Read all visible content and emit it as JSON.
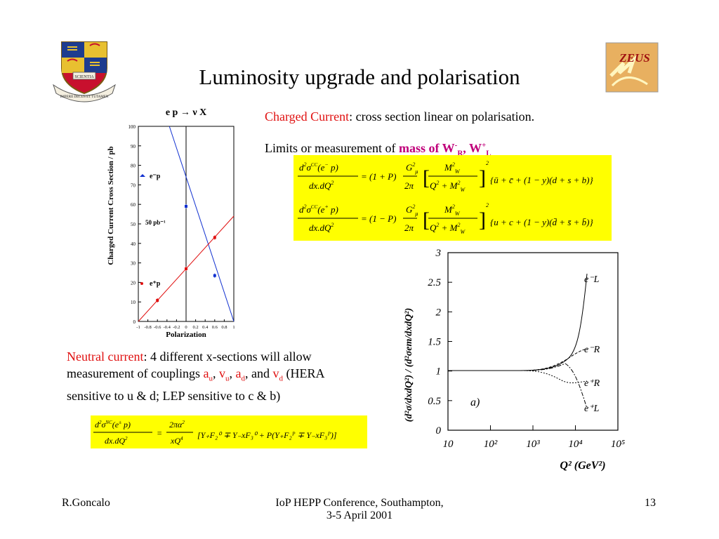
{
  "slide": {
    "title": "Luminosity upgrade and polarisation",
    "footer_left": "R.Goncalo",
    "footer_center_line1": "IoP HEPP Conference, Southampton,",
    "footer_center_line2": "3-5 April 2001",
    "footer_right": "13"
  },
  "logos": {
    "left": {
      "icon": "university-crest",
      "motto_words": [
        "SCIENTIA",
        "IMPERII DECUS ET TUTAMEN"
      ]
    },
    "right": {
      "icon": "zeus-logo",
      "text": "ZEUS"
    }
  },
  "cc_plot": {
    "title": "e p → ν X",
    "ylabel": "Charged Current Cross Section / pb",
    "xlabel": "Polarization",
    "yticks": [
      "0",
      "10",
      "20",
      "30",
      "40",
      "50",
      "60",
      "70",
      "80",
      "90",
      "100"
    ],
    "xticks": [
      "-1",
      "-0.8",
      "-0.6",
      "-0.4",
      "-0.2",
      "0",
      "0.2",
      "0.4",
      "0.6",
      "0.8",
      "1"
    ],
    "label_eminus": "e⁻p",
    "label_eplus": "e⁺p",
    "label_lumi": "50 pb⁻¹"
  },
  "cc_text": {
    "line1_colored": "Charged Current",
    "line1_rest": ": cross section linear on polarisation.",
    "line2_plain": "Limits or measurement of ",
    "line2_bold": "mass of W",
    "line2_bold_sup1": "-",
    "line2_bold_sub1": "R",
    "line2_sep": ", W",
    "line2_bold_sup2": "+",
    "line2_bold_sub2": "L"
  },
  "nc_text": {
    "colored": "Neutral current",
    "rest1": ": 4 different x-sections will allow",
    "line2a": "measurement of couplings ",
    "a": "a",
    "u": "u",
    "v": "v",
    "d": "d",
    "sep": ", ",
    "and": ", and ",
    "hera": " (HERA",
    "line3": "sensitive to u & d; LEP sensitive to c & b)"
  },
  "ratio_plot": {
    "ylabel": "(d²σ/dxdQ²) / (d²σem/dxdQ²)",
    "xlabel": "Q² (GeV²)",
    "panel_label": "a)",
    "yticks": [
      "0",
      "0.5",
      "1",
      "1.5",
      "2",
      "2.5",
      "3"
    ],
    "xticks": [
      "10",
      "10²",
      "10³",
      "10⁴",
      "10⁵"
    ],
    "curve_labels": [
      "e⁻L",
      "e⁻R",
      "e⁺R",
      "e⁺L"
    ]
  },
  "chart_data": {
    "type": "scatter",
    "title": "e p → ν X",
    "xlabel": "Polarization",
    "ylabel": "Charged Current Cross Section / pb",
    "xlim": [
      -1,
      1
    ],
    "ylim": [
      0,
      100
    ],
    "series": [
      {
        "name": "e⁻p",
        "color": "#1030d0",
        "x": [
          0,
          0.6
        ],
        "y": [
          59,
          23.5
        ],
        "fit_line": {
          "x": [
            -0.35,
            1
          ],
          "y": [
            100,
            0
          ]
        }
      },
      {
        "name": "e⁺p",
        "color": "#e01010",
        "x": [
          -0.6,
          0,
          0.6
        ],
        "y": [
          10.8,
          27,
          43
        ],
        "fit_line": {
          "x": [
            -1,
            1
          ],
          "y": [
            0,
            54
          ]
        }
      }
    ]
  }
}
